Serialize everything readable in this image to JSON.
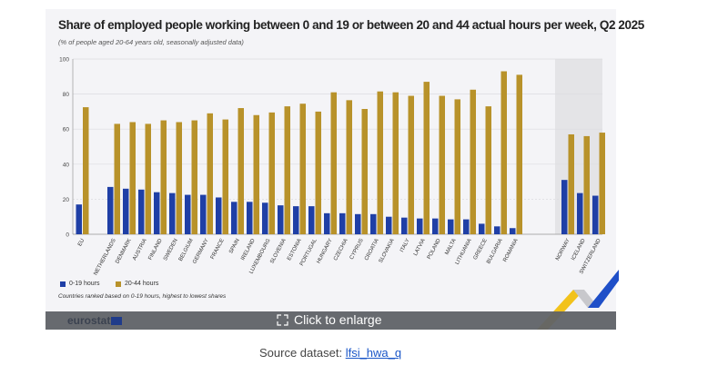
{
  "chart_data": {
    "type": "bar",
    "title": "Share of employed people working between 0 and 19 or between 20 and 44 actual hours per week, Q2 2025",
    "subtitle": "(% of people aged 20-64 years old, seasonally adjusted data)",
    "categories": [
      "EU",
      "NETHERLANDS",
      "DENMARK",
      "AUSTRIA",
      "FINLAND",
      "SWEDEN",
      "BELGIUM",
      "GERMANY",
      "FRANCE",
      "SPAIN",
      "IRELAND",
      "LUXEMBOURG",
      "SLOVENIA",
      "ESTONIA",
      "PORTUGAL",
      "HUNGARY",
      "CZECHIA",
      "CYPRUS",
      "CROATIA",
      "SLOVAKIA",
      "ITALY",
      "LATVIA",
      "POLAND",
      "MALTA",
      "LITHUANIA",
      "GREECE",
      "BULGARIA",
      "ROMANIA",
      "NORWAY",
      "ICELAND",
      "SWITZERLAND"
    ],
    "series": [
      {
        "name": "0-19 hours",
        "color": "#1f3fa6",
        "values": [
          17,
          27,
          26,
          25.5,
          24,
          23.5,
          22.5,
          22.5,
          21,
          18.5,
          18.5,
          18,
          16.5,
          16,
          16,
          12,
          12,
          11.5,
          11.5,
          10,
          9.5,
          9,
          9,
          8.5,
          8.5,
          6,
          4.5,
          3.5,
          31,
          23.5,
          22
        ]
      },
      {
        "name": "20-44 hours",
        "color": "#b8922a",
        "values": [
          72.5,
          63,
          64,
          63,
          65,
          64,
          65,
          69,
          65.5,
          72,
          68,
          69.5,
          73,
          74.5,
          70,
          81,
          76.5,
          71.5,
          81.5,
          81,
          79,
          87,
          79,
          77,
          82.5,
          73,
          93,
          91,
          57,
          56,
          58
        ]
      }
    ],
    "ylim": [
      0,
      100
    ],
    "yticks": [
      0,
      20,
      40,
      60,
      80,
      100
    ],
    "grid": true,
    "legend_placement": "bottom-left",
    "shaded_group": [
      "NORWAY",
      "ICELAND",
      "SWITZERLAND"
    ],
    "note": "Countries ranked based on 0-19 hours,  highest to lowest shares"
  },
  "overlay": {
    "enlarge_label": "Click to enlarge",
    "logo": "eurostat",
    "expand_icon": "expand-icon"
  },
  "source": {
    "label": "Source dataset:",
    "link": "lfsi_hwa_q"
  }
}
